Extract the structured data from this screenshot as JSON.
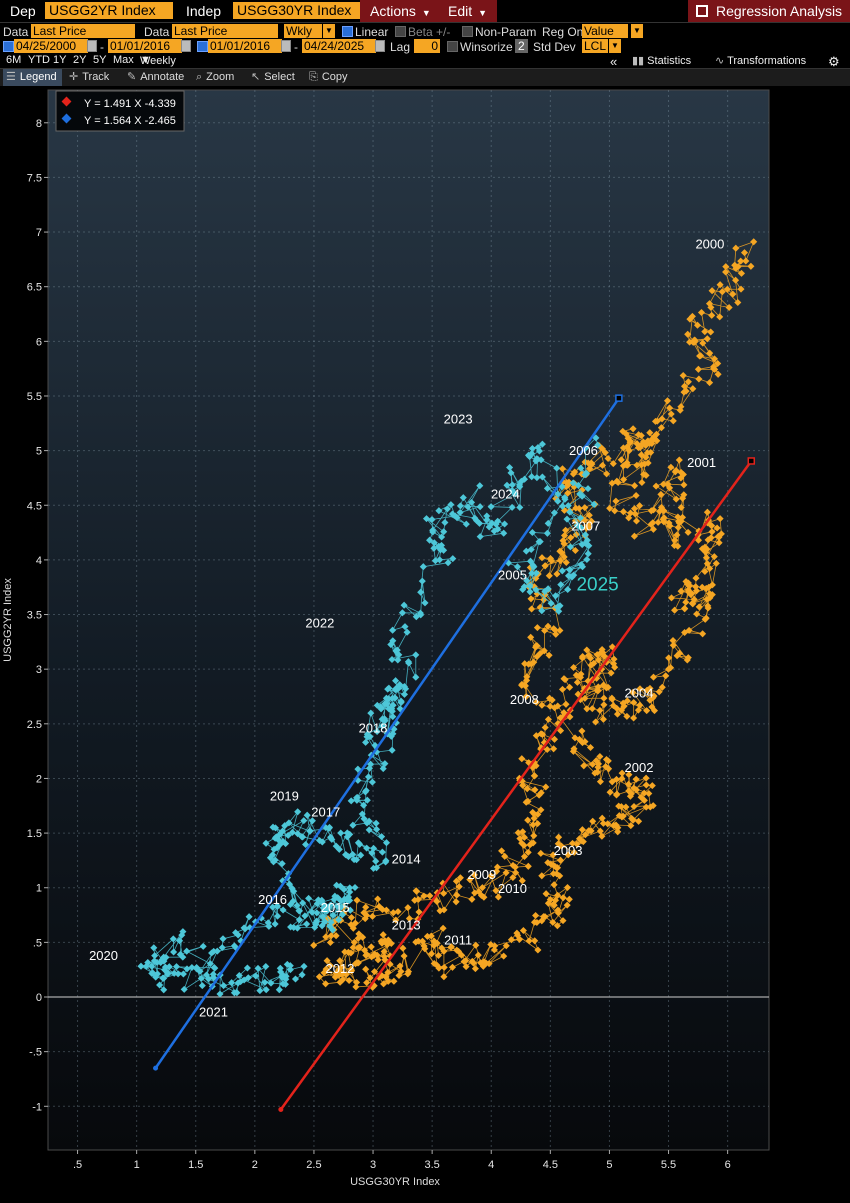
{
  "toolbar": {
    "dep_label": "Dep",
    "dep_ticker": "USGG2YR Index",
    "indep_label": "Indep",
    "indep_ticker": "USGG30YR Index",
    "actions_label": "Actions",
    "edit_label": "Edit",
    "title": "Regression Analysis"
  },
  "params": {
    "data1_label": "Data",
    "data1_value": "Last Price",
    "data2_label": "Data",
    "data2_value": "Last Price",
    "freq": "Wkly",
    "linear_label": "Linear",
    "beta_label": "Beta +/-",
    "nonparam_label": "Non-Param",
    "regon_label": "Reg On",
    "regon_value": "Value",
    "range1_start": "04/25/2000",
    "range1_end": "01/01/2016",
    "range2_start": "01/01/2016",
    "range2_end": "04/24/2025",
    "lag_label": "Lag",
    "lag_value": "0",
    "winsorize_label": "Winsorize",
    "winsorize_value": "2",
    "stddev_label": "Std Dev",
    "stddev_value": "LCL",
    "dash": "-"
  },
  "periods": {
    "items": [
      "6M",
      "YTD",
      "1Y",
      "2Y",
      "5Y",
      "Max"
    ],
    "freq": "Weekly",
    "statistics_label": "Statistics",
    "transformations_label": "Transformations"
  },
  "tools": {
    "legend": "Legend",
    "track": "Track",
    "annotate": "Annotate",
    "zoom": "Zoom",
    "select": "Select",
    "copy": "Copy"
  },
  "chart_data": {
    "type": "scatter",
    "xlabel": "USGG30YR Index",
    "ylabel": "USGG2YR Index",
    "xlim": [
      0.25,
      6.35
    ],
    "ylim": [
      -1.4,
      8.3
    ],
    "x_ticks": [
      ".5",
      "1",
      "1.5",
      "2",
      "2.5",
      "3",
      "3.5",
      "4",
      "4.5",
      "5",
      "5.5",
      "6"
    ],
    "x_tick_values": [
      0.5,
      1,
      1.5,
      2,
      2.5,
      3,
      3.5,
      4,
      4.5,
      5,
      5.5,
      6
    ],
    "y_ticks": [
      "-1",
      "-.5",
      "0",
      ".5",
      "1",
      "1.5",
      "2",
      "2.5",
      "3",
      "3.5",
      "4",
      "4.5",
      "5",
      "5.5",
      "6",
      "6.5",
      "7",
      "7.5",
      "8"
    ],
    "y_tick_values": [
      -1,
      -0.5,
      0,
      0.5,
      1,
      1.5,
      2,
      2.5,
      3,
      3.5,
      4,
      4.5,
      5,
      5.5,
      6,
      6.5,
      7,
      7.5,
      8
    ],
    "series": [
      {
        "name": "04/25/2000 - 01/01/2016",
        "color": "#f5a623",
        "regression": "Y = 1.491 X  -4.339",
        "slope": 1.491,
        "intercept": -4.339,
        "line_color": "#e3231b",
        "line_x": [
          2.22,
          6.2
        ],
        "anchors": [
          [
            6.2,
            6.87
          ],
          [
            6.0,
            6.5
          ],
          [
            5.75,
            6.1
          ],
          [
            5.85,
            5.8
          ],
          [
            5.5,
            5.4
          ],
          [
            5.3,
            5.0
          ],
          [
            5.1,
            4.6
          ],
          [
            5.35,
            4.3
          ],
          [
            5.6,
            4.85
          ],
          [
            5.45,
            4.2
          ],
          [
            5.85,
            4.35
          ],
          [
            5.9,
            4.0
          ],
          [
            5.55,
            3.6
          ],
          [
            5.85,
            3.7
          ],
          [
            5.6,
            3.2
          ],
          [
            5.3,
            2.7
          ],
          [
            5.05,
            2.6
          ],
          [
            4.8,
            2.75
          ],
          [
            5.0,
            3.1
          ],
          [
            4.75,
            3.0
          ],
          [
            4.6,
            2.6
          ],
          [
            4.85,
            2.1
          ],
          [
            5.1,
            1.95
          ],
          [
            5.3,
            1.85
          ],
          [
            5.1,
            1.6
          ],
          [
            4.8,
            1.5
          ],
          [
            4.5,
            1.2
          ],
          [
            4.6,
            0.9
          ],
          [
            4.4,
            0.6
          ],
          [
            4.0,
            0.4
          ],
          [
            3.7,
            0.3
          ],
          [
            3.5,
            0.5
          ],
          [
            3.2,
            0.25
          ],
          [
            2.9,
            0.2
          ],
          [
            2.6,
            0.25
          ],
          [
            2.9,
            0.35
          ],
          [
            3.2,
            0.45
          ],
          [
            2.6,
            0.6
          ],
          [
            2.9,
            0.75
          ],
          [
            3.3,
            0.85
          ],
          [
            3.7,
            0.95
          ],
          [
            4.1,
            1.05
          ],
          [
            4.3,
            1.4
          ],
          [
            4.4,
            1.7
          ],
          [
            4.3,
            2.1
          ],
          [
            4.5,
            2.5
          ],
          [
            4.3,
            3.0
          ],
          [
            4.5,
            3.4
          ],
          [
            4.4,
            3.8
          ],
          [
            4.6,
            4.1
          ],
          [
            4.8,
            4.4
          ],
          [
            4.6,
            4.7
          ],
          [
            4.9,
            4.9
          ],
          [
            5.3,
            5.0
          ],
          [
            5.2,
            5.2
          ]
        ],
        "n_points": 820,
        "seed": 11
      },
      {
        "name": "01/01/2016 - 04/24/2025",
        "color": "#4dc7d8",
        "regression": "Y = 1.564 X  -2.465",
        "slope": 1.564,
        "intercept": -2.465,
        "line_color": "#1e6fe0",
        "line_x": [
          1.16,
          5.08
        ],
        "anchors": [
          [
            2.4,
            0.2
          ],
          [
            2.2,
            0.18
          ],
          [
            1.9,
            0.15
          ],
          [
            1.6,
            0.15
          ],
          [
            1.3,
            0.18
          ],
          [
            1.1,
            0.2
          ],
          [
            1.3,
            0.5
          ],
          [
            1.7,
            0.3
          ],
          [
            2.1,
            0.8
          ],
          [
            2.4,
            0.75
          ],
          [
            2.6,
            0.8
          ],
          [
            2.85,
            0.95
          ],
          [
            2.6,
            0.7
          ],
          [
            2.3,
            1.0
          ],
          [
            2.15,
            1.4
          ],
          [
            2.3,
            1.6
          ],
          [
            2.6,
            1.5
          ],
          [
            2.85,
            1.35
          ],
          [
            3.05,
            1.25
          ],
          [
            2.85,
            1.8
          ],
          [
            3.0,
            2.1
          ],
          [
            3.1,
            2.5
          ],
          [
            3.2,
            2.8
          ],
          [
            3.0,
            2.45
          ],
          [
            3.3,
            2.95
          ],
          [
            3.2,
            3.3
          ],
          [
            3.6,
            4.0
          ],
          [
            3.5,
            4.3
          ],
          [
            3.8,
            4.55
          ],
          [
            4.0,
            4.3
          ],
          [
            4.2,
            4.7
          ],
          [
            4.4,
            5.0
          ],
          [
            4.55,
            4.5
          ],
          [
            4.2,
            3.9
          ],
          [
            4.5,
            3.6
          ],
          [
            4.75,
            3.95
          ],
          [
            4.7,
            4.4
          ],
          [
            4.9,
            5.05
          ]
        ],
        "n_points": 470,
        "seed": 23
      }
    ],
    "year_labels": [
      {
        "text": "2000",
        "x": 5.85,
        "y": 6.85
      },
      {
        "text": "2001",
        "x": 5.78,
        "y": 4.85
      },
      {
        "text": "2002",
        "x": 5.25,
        "y": 2.06
      },
      {
        "text": "2003",
        "x": 4.65,
        "y": 1.3
      },
      {
        "text": "2004",
        "x": 5.25,
        "y": 2.74
      },
      {
        "text": "2005",
        "x": 4.18,
        "y": 3.82
      },
      {
        "text": "2006",
        "x": 4.78,
        "y": 4.96
      },
      {
        "text": "2007",
        "x": 4.8,
        "y": 4.27
      },
      {
        "text": "2008",
        "x": 4.28,
        "y": 2.68
      },
      {
        "text": "2009",
        "x": 3.92,
        "y": 1.08
      },
      {
        "text": "2010",
        "x": 4.18,
        "y": 0.95
      },
      {
        "text": "2011",
        "x": 3.72,
        "y": 0.48
      },
      {
        "text": "2012",
        "x": 2.72,
        "y": 0.22
      },
      {
        "text": "2013",
        "x": 3.28,
        "y": 0.62
      },
      {
        "text": "2014",
        "x": 3.28,
        "y": 1.22
      },
      {
        "text": "2015",
        "x": 2.68,
        "y": 0.78
      },
      {
        "text": "2016",
        "x": 2.15,
        "y": 0.85
      },
      {
        "text": "2017",
        "x": 2.6,
        "y": 1.65
      },
      {
        "text": "2018",
        "x": 3.0,
        "y": 2.42
      },
      {
        "text": "2019",
        "x": 2.25,
        "y": 1.8
      },
      {
        "text": "2020",
        "x": 0.72,
        "y": 0.34
      },
      {
        "text": "2021",
        "x": 1.65,
        "y": -0.18
      },
      {
        "text": "2022",
        "x": 2.55,
        "y": 3.38
      },
      {
        "text": "2023",
        "x": 3.72,
        "y": 5.25
      },
      {
        "text": "2024",
        "x": 4.12,
        "y": 4.56
      },
      {
        "text": "2025",
        "x": 4.9,
        "y": 3.72
      }
    ]
  }
}
